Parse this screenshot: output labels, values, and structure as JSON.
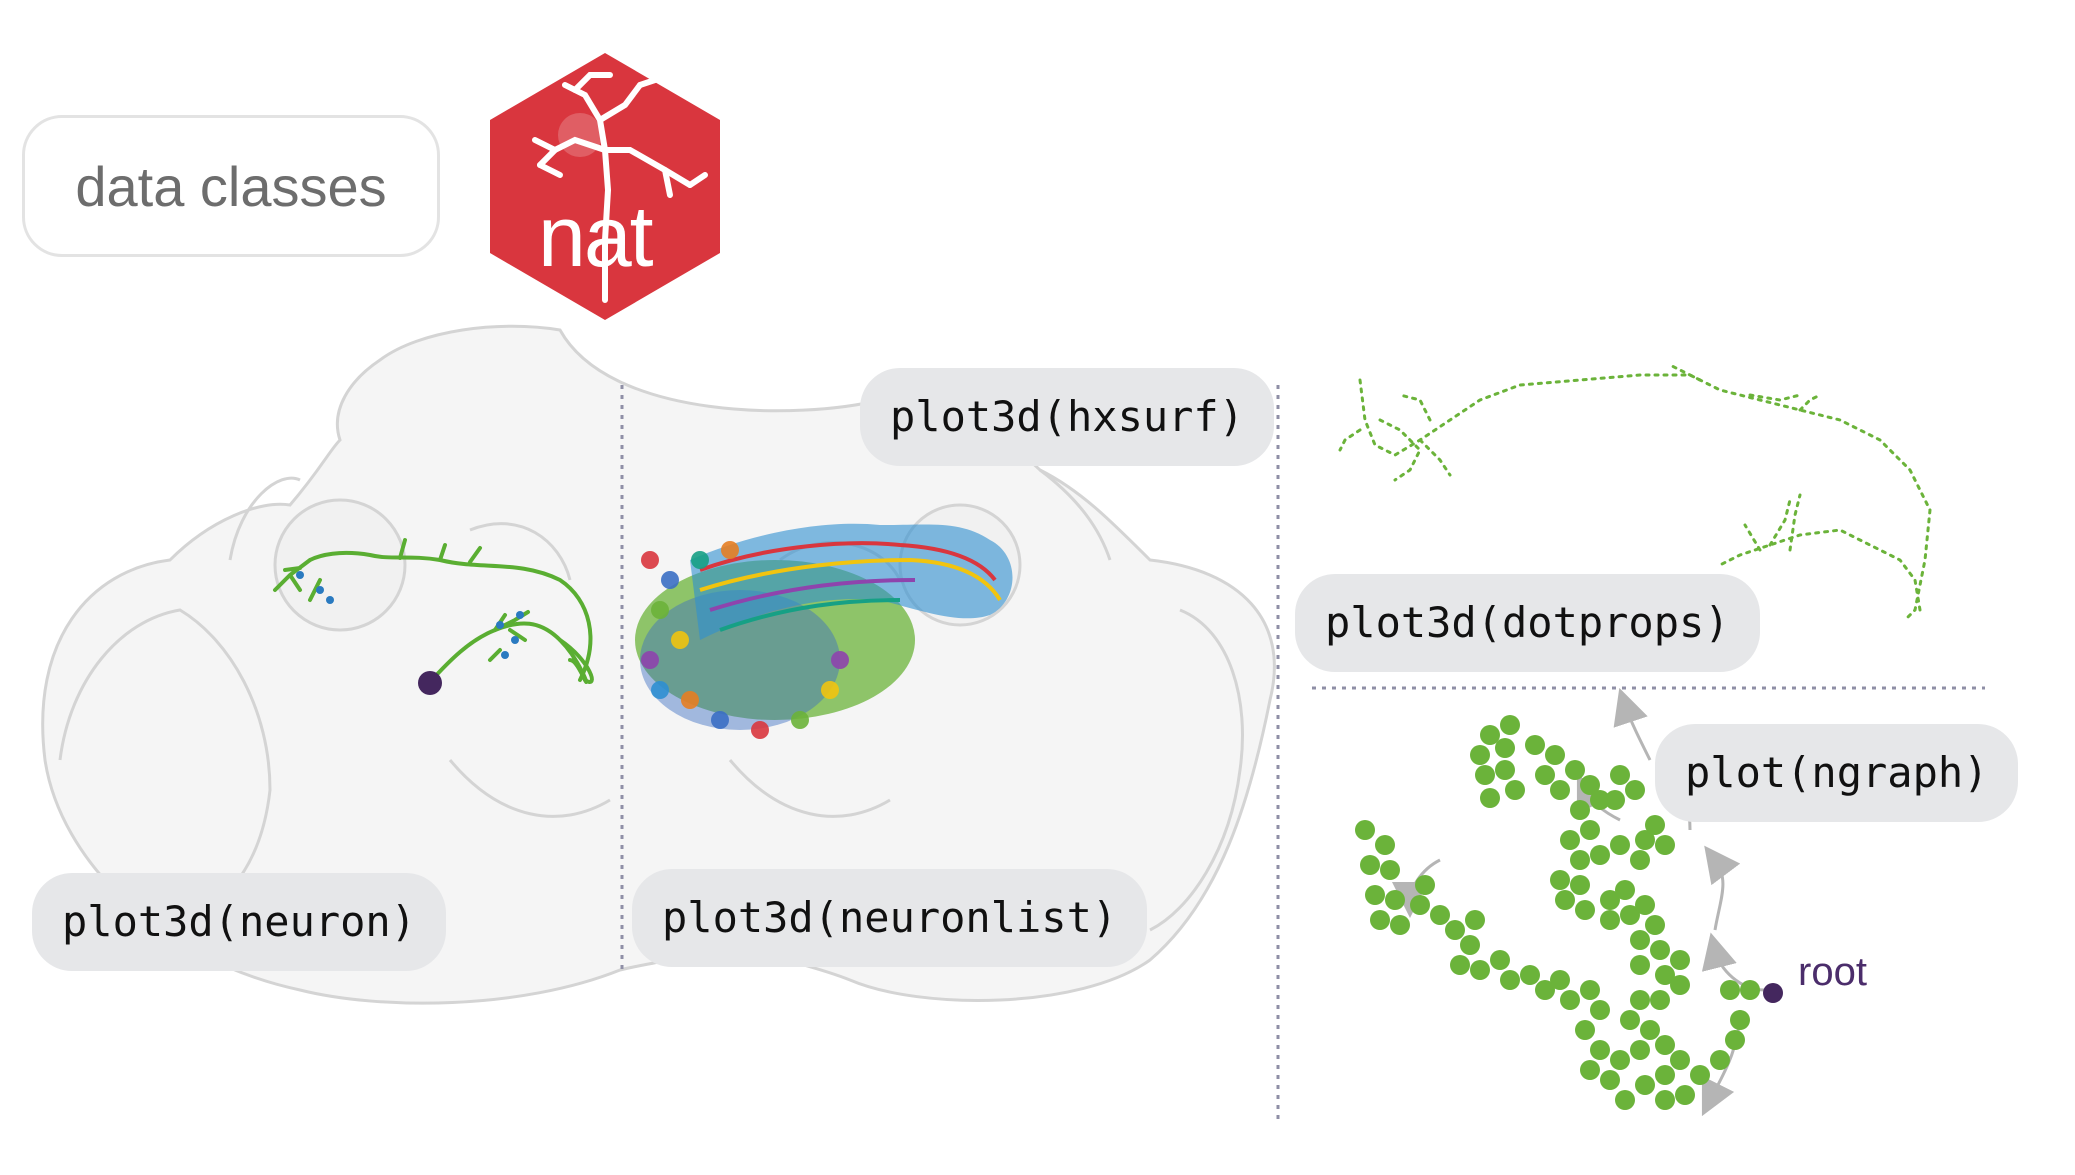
{
  "title": "data classes",
  "logo": {
    "text": "nat",
    "color": "#d9363e"
  },
  "labels": {
    "neuron": "plot3d(neuron)",
    "neuronlist": "plot3d(neuronlist)",
    "hxsurf": "plot3d(hxsurf)",
    "dotprops": "plot3d(dotprops)",
    "ngraph": "plot(ngraph)",
    "root": "root"
  },
  "colors": {
    "neuron": "#5aae32",
    "root": "#44275e",
    "brain": "#e6e6e6",
    "divider": "#8f8fa6",
    "graph_node": "#6bb33a",
    "graph_edge": "#b5b5b5"
  }
}
